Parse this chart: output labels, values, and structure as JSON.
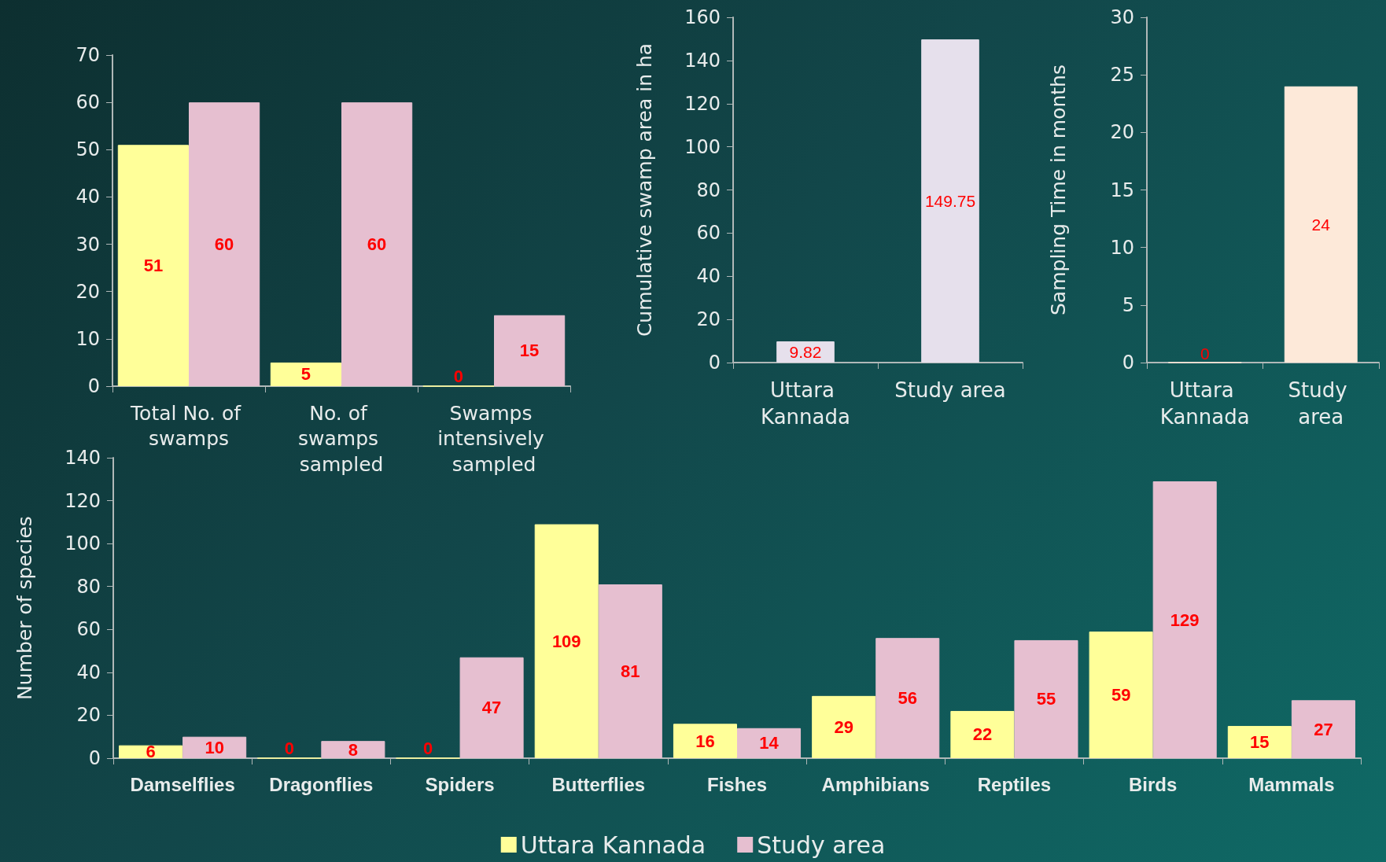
{
  "chart_data": [
    {
      "type": "bar",
      "categories": [
        "Total No. of swamps",
        "No. of swamps sampled",
        "Swamps intensively sampled"
      ],
      "series": [
        {
          "color": "#ffff99",
          "values": [
            51,
            5,
            0
          ]
        },
        {
          "color": "#e6bfd0",
          "values": [
            60,
            60,
            15
          ]
        }
      ],
      "ylim": [
        0,
        70
      ],
      "yticks": [
        0,
        10,
        20,
        30,
        40,
        50,
        60,
        70
      ],
      "data_labels": true
    },
    {
      "type": "bar",
      "categories": [
        "Uttara Kannada",
        "Study area"
      ],
      "series": [
        {
          "color": "#e6e0ec",
          "values": [
            9.82,
            149.75
          ]
        }
      ],
      "ylabel": "Cumulative swamp area in ha",
      "ylim": [
        0,
        160
      ],
      "yticks": [
        0,
        20,
        40,
        60,
        80,
        100,
        120,
        140,
        160
      ],
      "data_labels": true
    },
    {
      "type": "bar",
      "categories": [
        "Uttara Kannada",
        "Study area"
      ],
      "series": [
        {
          "color": "#fde9d9",
          "values": [
            0,
            24
          ]
        }
      ],
      "ylabel": "Sampling Time in months",
      "ylim": [
        0,
        30
      ],
      "yticks": [
        0,
        5,
        10,
        15,
        20,
        25,
        30
      ],
      "data_labels": true
    },
    {
      "type": "bar",
      "categories": [
        "Damselflies",
        "Dragonflies",
        "Spiders",
        "Butterflies",
        "Fishes",
        "Amphibians",
        "Reptiles",
        "Birds",
        "Mammals"
      ],
      "series": [
        {
          "name": "Uttara Kannada",
          "color": "#ffff99",
          "values": [
            6,
            0,
            0,
            109,
            16,
            29,
            22,
            59,
            15
          ]
        },
        {
          "name": "Study area",
          "color": "#e6bfd0",
          "values": [
            10,
            8,
            47,
            81,
            14,
            56,
            55,
            129,
            27
          ]
        }
      ],
      "ylabel": "Number of species",
      "ylim": [
        0,
        140
      ],
      "yticks": [
        0,
        20,
        40,
        60,
        80,
        100,
        120,
        140
      ],
      "data_labels": true,
      "legend": "bottom"
    }
  ]
}
